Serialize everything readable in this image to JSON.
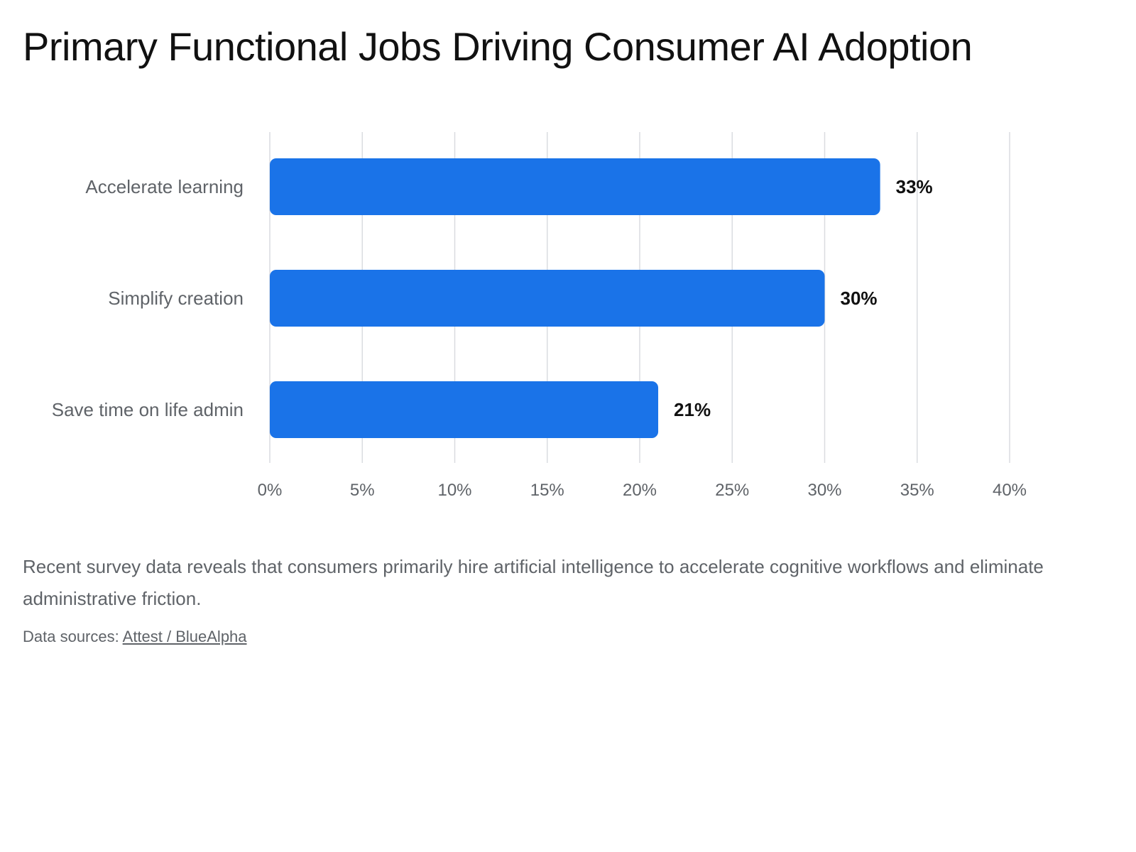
{
  "page": {
    "title": "Primary Functional Jobs Driving Consumer AI Adoption",
    "description": "Recent survey data reveals that consumers primarily hire artificial intelligence to accelerate cognitive workflows and eliminate administrative friction.",
    "sources_prefix": "Data sources:",
    "sources_link": "Attest / BlueAlpha"
  },
  "colors": {
    "bar": "#1a73e8",
    "grid": "#dadce0",
    "axis_text": "#5f6368",
    "value_text": "#111111"
  },
  "chart_data": {
    "type": "bar",
    "orientation": "horizontal",
    "title": "Primary Functional Jobs Driving Consumer AI Adoption",
    "xlabel": "",
    "ylabel": "",
    "categories": [
      "Accelerate learning",
      "Simplify creation",
      "Save time on life admin"
    ],
    "values": [
      33,
      30,
      21
    ],
    "value_labels": [
      "33%",
      "30%",
      "21%"
    ],
    "xlim": [
      0,
      40
    ],
    "x_ticks": [
      0,
      5,
      10,
      15,
      20,
      25,
      30,
      35,
      40
    ],
    "x_tick_labels": [
      "0%",
      "5%",
      "10%",
      "15%",
      "20%",
      "25%",
      "30%",
      "35%",
      "40%"
    ],
    "grid": "vertical",
    "legend": "none"
  }
}
